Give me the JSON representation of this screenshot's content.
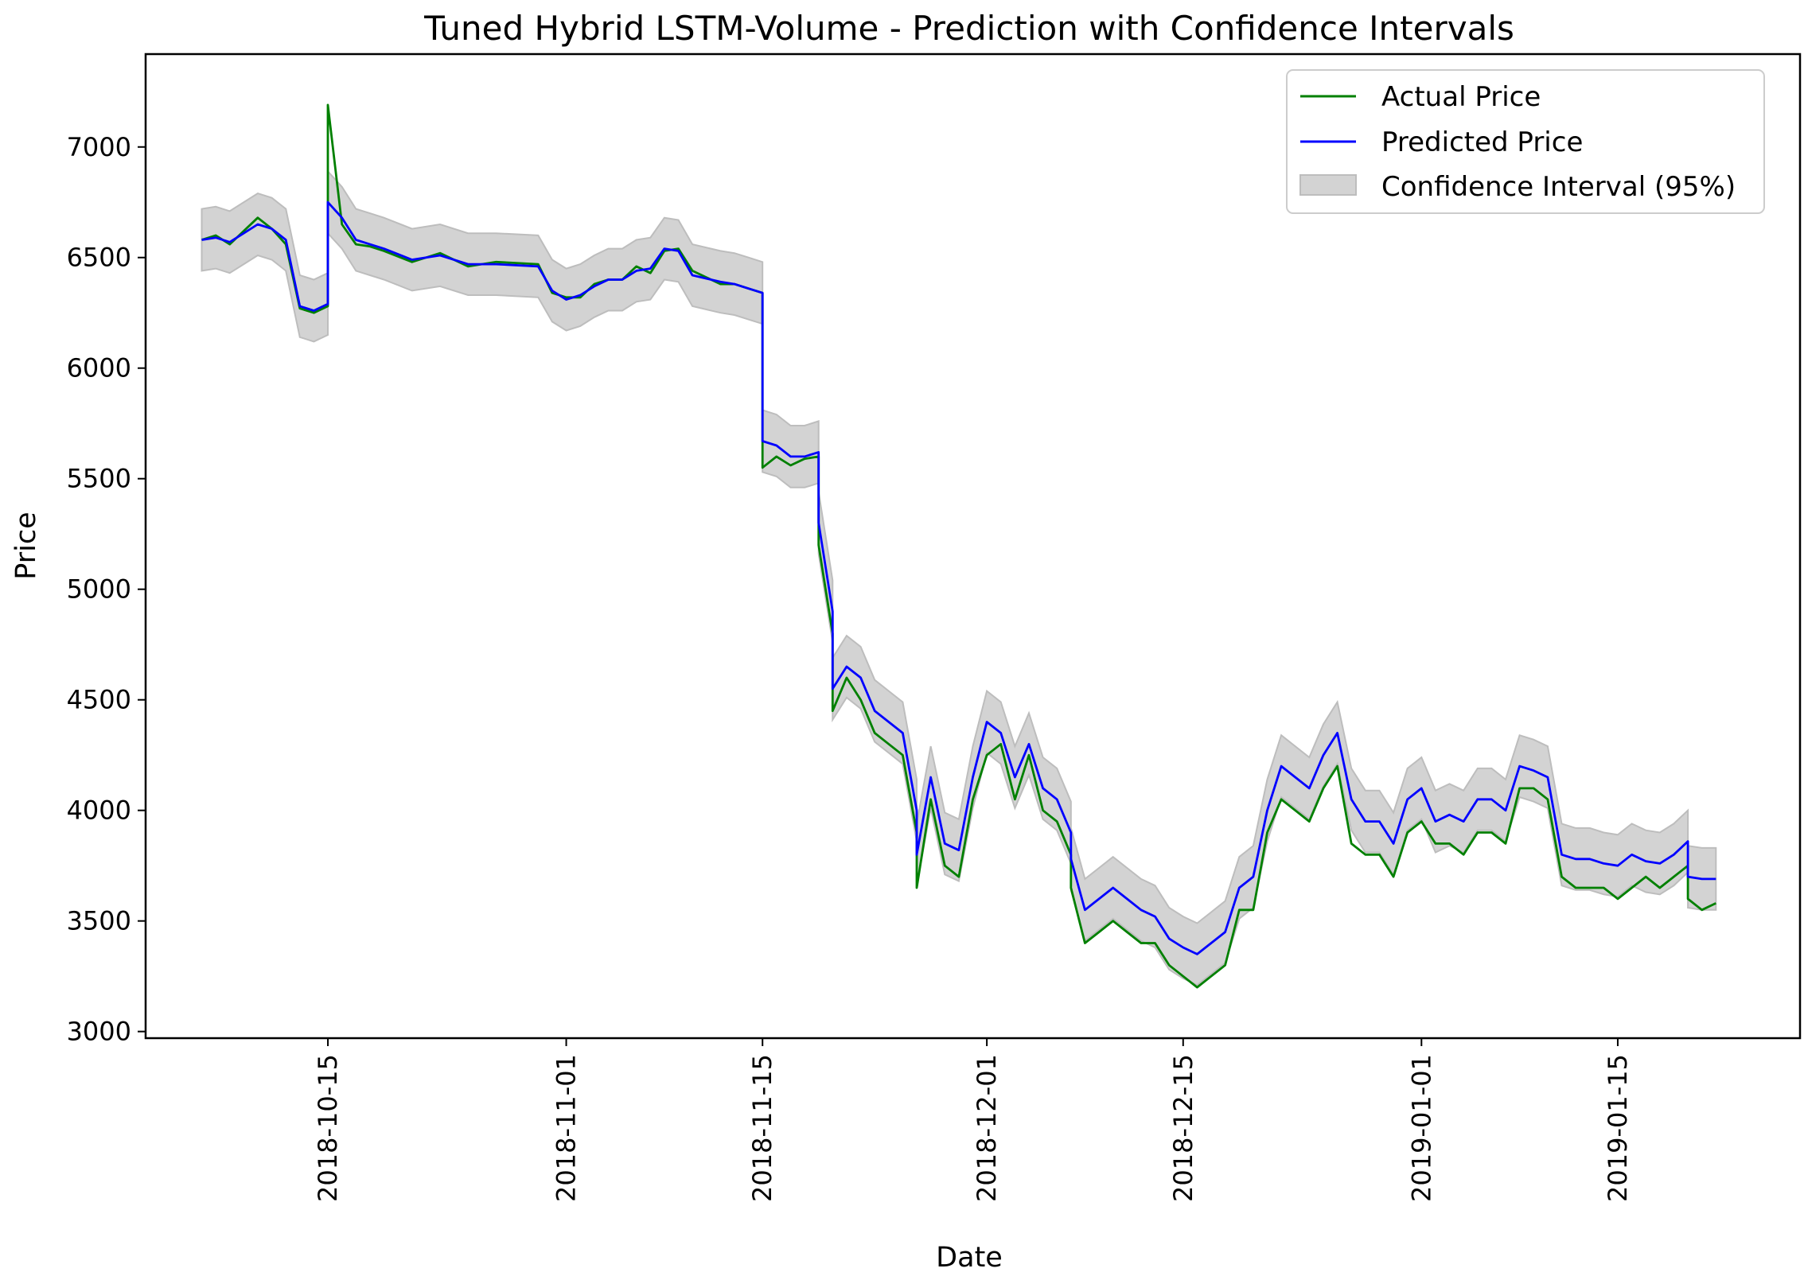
{
  "chart_data": {
    "type": "line",
    "title": "Tuned Hybrid LSTM-Volume - Prediction with Confidence Intervals",
    "xlabel": "Date",
    "ylabel": "Price",
    "xlim": [
      "2018-10-02",
      "2019-01-28"
    ],
    "ylim": [
      2970,
      7420
    ],
    "x_ticks": [
      "2018-10-15",
      "2018-11-01",
      "2018-11-15",
      "2018-12-01",
      "2018-12-15",
      "2019-01-01",
      "2019-01-15"
    ],
    "y_ticks": [
      3000,
      3500,
      4000,
      4500,
      5000,
      5500,
      6000,
      6500,
      7000
    ],
    "legend_position": "top-right",
    "colors": {
      "actual": "#008000",
      "predicted": "#0000ff",
      "band": "#d3d3d3",
      "band_edge": "#bdbdbd"
    },
    "series": [
      {
        "name": "Actual Price",
        "x": [
          "2018-10-06",
          "2018-10-07",
          "2018-10-08",
          "2018-10-09",
          "2018-10-10",
          "2018-10-11",
          "2018-10-12",
          "2018-10-13",
          "2018-10-14",
          "2018-10-15",
          "2018-10-15",
          "2018-10-16",
          "2018-10-17",
          "2018-10-18",
          "2018-10-19",
          "2018-10-21",
          "2018-10-23",
          "2018-10-25",
          "2018-10-27",
          "2018-10-30",
          "2018-10-31",
          "2018-11-01",
          "2018-11-02",
          "2018-11-03",
          "2018-11-04",
          "2018-11-05",
          "2018-11-06",
          "2018-11-07",
          "2018-11-08",
          "2018-11-09",
          "2018-11-10",
          "2018-11-12",
          "2018-11-13",
          "2018-11-14",
          "2018-11-15",
          "2018-11-15",
          "2018-11-16",
          "2018-11-17",
          "2018-11-18",
          "2018-11-19",
          "2018-11-19",
          "2018-11-20",
          "2018-11-20",
          "2018-11-21",
          "2018-11-22",
          "2018-11-23",
          "2018-11-24",
          "2018-11-25",
          "2018-11-26",
          "2018-11-26",
          "2018-11-27",
          "2018-11-28",
          "2018-11-29",
          "2018-11-30",
          "2018-12-01",
          "2018-12-02",
          "2018-12-03",
          "2018-12-04",
          "2018-12-05",
          "2018-12-06",
          "2018-12-07",
          "2018-12-07",
          "2018-12-08",
          "2018-12-09",
          "2018-12-10",
          "2018-12-11",
          "2018-12-12",
          "2018-12-13",
          "2018-12-14",
          "2018-12-15",
          "2018-12-16",
          "2018-12-17",
          "2018-12-18",
          "2018-12-19",
          "2018-12-20",
          "2018-12-21",
          "2018-12-22",
          "2018-12-23",
          "2018-12-24",
          "2018-12-25",
          "2018-12-26",
          "2018-12-27",
          "2018-12-28",
          "2018-12-29",
          "2018-12-30",
          "2018-12-31",
          "2019-01-01",
          "2019-01-02",
          "2019-01-03",
          "2019-01-04",
          "2019-01-05",
          "2019-01-06",
          "2019-01-07",
          "2019-01-08",
          "2019-01-09",
          "2019-01-10",
          "2019-01-11",
          "2019-01-12",
          "2019-01-13",
          "2019-01-14",
          "2019-01-15",
          "2019-01-16",
          "2019-01-17",
          "2019-01-18",
          "2019-01-19",
          "2019-01-20",
          "2019-01-20",
          "2019-01-21",
          "2019-01-22"
        ],
        "values": [
          6580,
          6600,
          6560,
          6620,
          6680,
          6630,
          6560,
          6270,
          6250,
          6280,
          7190,
          6650,
          6560,
          6550,
          6530,
          6480,
          6520,
          6460,
          6480,
          6470,
          6340,
          6320,
          6320,
          6380,
          6400,
          6400,
          6460,
          6430,
          6530,
          6540,
          6440,
          6380,
          6380,
          6360,
          6340,
          5550,
          5600,
          5560,
          5590,
          5600,
          5200,
          4800,
          4450,
          4600,
          4500,
          4350,
          4300,
          4250,
          3900,
          3650,
          4050,
          3750,
          3700,
          4050,
          4250,
          4300,
          4050,
          4250,
          4000,
          3950,
          3800,
          3650,
          3400,
          3450,
          3500,
          3450,
          3400,
          3400,
          3300,
          3250,
          3200,
          3250,
          3300,
          3550,
          3550,
          3900,
          4050,
          4000,
          3950,
          4100,
          4200,
          3850,
          3800,
          3800,
          3700,
          3900,
          3950,
          3850,
          3850,
          3800,
          3900,
          3900,
          3850,
          4100,
          4100,
          4050,
          3700,
          3650,
          3650,
          3650,
          3600,
          3650,
          3700,
          3650,
          3700,
          3750,
          3600,
          3550,
          3580
        ]
      },
      {
        "name": "Predicted Price",
        "x": [
          "2018-10-06",
          "2018-10-07",
          "2018-10-08",
          "2018-10-09",
          "2018-10-10",
          "2018-10-11",
          "2018-10-12",
          "2018-10-13",
          "2018-10-14",
          "2018-10-15",
          "2018-10-15",
          "2018-10-16",
          "2018-10-17",
          "2018-10-18",
          "2018-10-19",
          "2018-10-21",
          "2018-10-23",
          "2018-10-25",
          "2018-10-27",
          "2018-10-30",
          "2018-10-31",
          "2018-11-01",
          "2018-11-02",
          "2018-11-03",
          "2018-11-04",
          "2018-11-05",
          "2018-11-06",
          "2018-11-07",
          "2018-11-08",
          "2018-11-09",
          "2018-11-10",
          "2018-11-12",
          "2018-11-13",
          "2018-11-14",
          "2018-11-15",
          "2018-11-15",
          "2018-11-16",
          "2018-11-17",
          "2018-11-18",
          "2018-11-19",
          "2018-11-19",
          "2018-11-20",
          "2018-11-20",
          "2018-11-21",
          "2018-11-22",
          "2018-11-23",
          "2018-11-24",
          "2018-11-25",
          "2018-11-26",
          "2018-11-26",
          "2018-11-27",
          "2018-11-28",
          "2018-11-29",
          "2018-11-30",
          "2018-12-01",
          "2018-12-02",
          "2018-12-03",
          "2018-12-04",
          "2018-12-05",
          "2018-12-06",
          "2018-12-07",
          "2018-12-07",
          "2018-12-08",
          "2018-12-09",
          "2018-12-10",
          "2018-12-11",
          "2018-12-12",
          "2018-12-13",
          "2018-12-14",
          "2018-12-15",
          "2018-12-16",
          "2018-12-17",
          "2018-12-18",
          "2018-12-19",
          "2018-12-20",
          "2018-12-21",
          "2018-12-22",
          "2018-12-23",
          "2018-12-24",
          "2018-12-25",
          "2018-12-26",
          "2018-12-27",
          "2018-12-28",
          "2018-12-29",
          "2018-12-30",
          "2018-12-31",
          "2019-01-01",
          "2019-01-02",
          "2019-01-03",
          "2019-01-04",
          "2019-01-05",
          "2019-01-06",
          "2019-01-07",
          "2019-01-08",
          "2019-01-09",
          "2019-01-10",
          "2019-01-11",
          "2019-01-12",
          "2019-01-13",
          "2019-01-14",
          "2019-01-15",
          "2019-01-16",
          "2019-01-17",
          "2019-01-18",
          "2019-01-19",
          "2019-01-20",
          "2019-01-20",
          "2019-01-21",
          "2019-01-22"
        ],
        "values": [
          6580,
          6590,
          6570,
          6610,
          6650,
          6630,
          6580,
          6280,
          6260,
          6290,
          6750,
          6680,
          6580,
          6560,
          6540,
          6490,
          6510,
          6470,
          6470,
          6460,
          6350,
          6310,
          6330,
          6370,
          6400,
          6400,
          6440,
          6450,
          6540,
          6530,
          6420,
          6390,
          6380,
          6360,
          6340,
          5670,
          5650,
          5600,
          5600,
          5620,
          5300,
          4900,
          4550,
          4650,
          4600,
          4450,
          4400,
          4350,
          4000,
          3800,
          4150,
          3850,
          3820,
          4150,
          4400,
          4350,
          4150,
          4300,
          4100,
          4050,
          3900,
          3780,
          3550,
          3600,
          3650,
          3600,
          3550,
          3520,
          3420,
          3380,
          3350,
          3400,
          3450,
          3650,
          3700,
          4000,
          4200,
          4150,
          4100,
          4250,
          4350,
          4050,
          3950,
          3950,
          3850,
          4050,
          4100,
          3950,
          3980,
          3950,
          4050,
          4050,
          4000,
          4200,
          4180,
          4150,
          3800,
          3780,
          3780,
          3760,
          3750,
          3800,
          3770,
          3760,
          3800,
          3860,
          3700,
          3690,
          3690
        ]
      }
    ],
    "band": {
      "name": "Confidence Interval (95%)",
      "half_width": 140
    }
  }
}
